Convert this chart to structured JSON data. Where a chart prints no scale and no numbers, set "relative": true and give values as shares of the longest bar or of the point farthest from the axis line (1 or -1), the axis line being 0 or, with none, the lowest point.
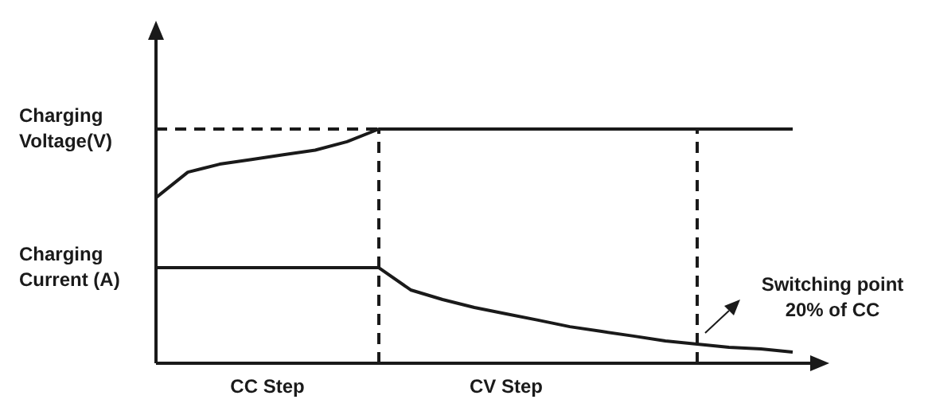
{
  "chart_data": {
    "type": "line",
    "relative": true,
    "categories": [
      null,
      null,
      null,
      null,
      null,
      null,
      null,
      null,
      null,
      null,
      null,
      null,
      null,
      null,
      null,
      null,
      null,
      null,
      null,
      null,
      null
    ],
    "legend": false,
    "marker": "none",
    "line_style": "solid",
    "series": [
      {
        "color": "#1a1a1a",
        "values": [
          0.707,
          0.816,
          0.85,
          0.87,
          0.89,
          0.91,
          0.946,
          1,
          1,
          1,
          1,
          1,
          1,
          1,
          1,
          1,
          1,
          1,
          1,
          1,
          1
        ]
      },
      {
        "color": "#1a1a1a",
        "values": [
          0.408,
          0.408,
          0.408,
          0.408,
          0.408,
          0.408,
          0.408,
          0.408,
          0.313,
          0.272,
          0.238,
          0.211,
          0.184,
          0.156,
          0.136,
          0.116,
          0.095,
          0.082,
          0.068,
          0.061,
          0.048
        ]
      }
    ],
    "ref_lines": [
      {
        "axis": "y",
        "value": 1,
        "color": "#1a1a1a",
        "line_style": "dashed"
      }
    ],
    "annotations": [
      "Charging\nVoltage(V)",
      "Charging\nCurrent (A)",
      "CC Step",
      "CV Step",
      "Switching point\n20% of CC"
    ]
  }
}
